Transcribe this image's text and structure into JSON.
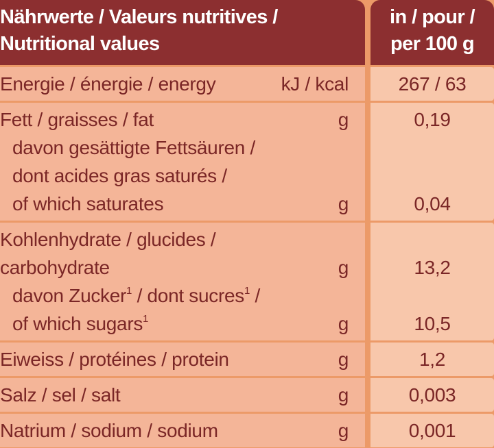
{
  "header": {
    "label_lines": [
      "Nährwerte / Valeurs nutritives /",
      "Nutritional values"
    ],
    "amount_lines": [
      "in / pour /",
      "per 100 g"
    ]
  },
  "rows": [
    {
      "lines": [
        {
          "label": "Energie / énergie / energy",
          "unit": "kJ / kcal",
          "value": "267 / 63"
        }
      ]
    },
    {
      "lines": [
        {
          "label": "Fett / graisses / fat",
          "unit": "g",
          "value": "0,19"
        }
      ],
      "sub": [
        {
          "label": "davon gesättigte Fettsäuren /"
        },
        {
          "label": "dont acides gras saturés /"
        },
        {
          "label": "of which saturates",
          "unit": "g",
          "value": "0,04"
        }
      ]
    },
    {
      "lines": [
        {
          "label": "Kohlenhydrate / glucides /"
        },
        {
          "label": "carbohydrate",
          "unit": "g",
          "value": "13,2"
        }
      ],
      "sub": [
        {
          "label_parts": [
            {
              "text": "davon Zucker"
            },
            {
              "sup": "1"
            },
            {
              "text": " / dont sucres"
            },
            {
              "sup": "1"
            },
            {
              "text": " /"
            }
          ]
        },
        {
          "label_parts": [
            {
              "text": "of which sugars"
            },
            {
              "sup": "1"
            }
          ],
          "unit": "g",
          "value": "10,5"
        }
      ]
    },
    {
      "lines": [
        {
          "label": "Eiweiss / protéines / protein",
          "unit": "g",
          "value": "1,2"
        }
      ]
    },
    {
      "lines": [
        {
          "label": "Salz / sel / salt",
          "unit": "g",
          "value": "0,003"
        }
      ]
    },
    {
      "lines": [
        {
          "label": "Natrium / sodium / sodium",
          "unit": "g",
          "value": "0,001"
        }
      ]
    }
  ]
}
